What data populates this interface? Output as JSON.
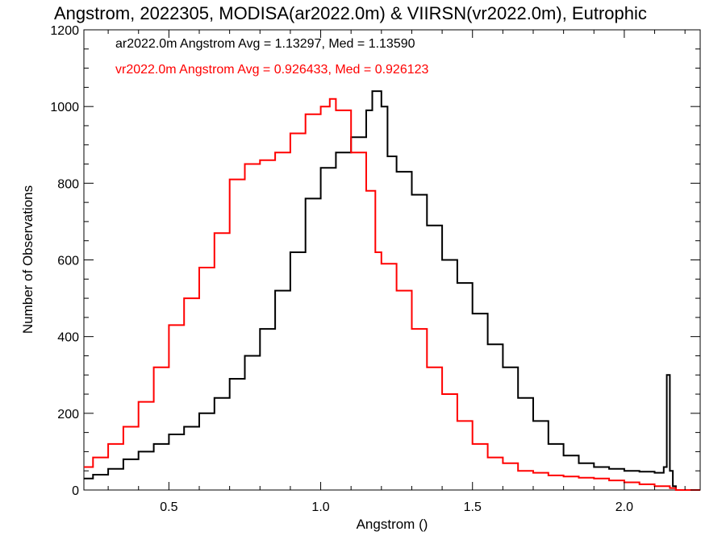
{
  "chart_data": {
    "type": "line",
    "title": "Angstrom, 2022305, MODISA(ar2022.0m) & VIIRSN(vr2022.0m), Eutrophic",
    "xlabel": "Angstrom ()",
    "ylabel": "Number of Observations",
    "xlim": [
      0.22,
      2.25
    ],
    "ylim": [
      0,
      1200
    ],
    "x_ticks": [
      0.5,
      1.0,
      1.5,
      2.0
    ],
    "x_tick_labels": [
      "0.5",
      "1.0",
      "1.5",
      "2.0"
    ],
    "y_ticks": [
      0,
      200,
      400,
      600,
      800,
      1000,
      1200
    ],
    "y_tick_labels": [
      "0",
      "200",
      "400",
      "600",
      "800",
      "1000",
      "1200"
    ],
    "grid": false,
    "legend_position": "top-left",
    "series": [
      {
        "name": "ar2022.0m",
        "legend_text": "ar2022.0m Angstrom Avg = 1.13297, Med = 1.13590",
        "color": "#000000",
        "step": true,
        "points": [
          [
            0.22,
            30
          ],
          [
            0.25,
            40
          ],
          [
            0.3,
            55
          ],
          [
            0.35,
            80
          ],
          [
            0.4,
            100
          ],
          [
            0.45,
            120
          ],
          [
            0.5,
            145
          ],
          [
            0.55,
            165
          ],
          [
            0.6,
            200
          ],
          [
            0.65,
            240
          ],
          [
            0.7,
            290
          ],
          [
            0.75,
            350
          ],
          [
            0.8,
            420
          ],
          [
            0.85,
            520
          ],
          [
            0.9,
            620
          ],
          [
            0.95,
            760
          ],
          [
            1.0,
            840
          ],
          [
            1.05,
            880
          ],
          [
            1.1,
            920
          ],
          [
            1.15,
            990
          ],
          [
            1.17,
            1040
          ],
          [
            1.2,
            1000
          ],
          [
            1.22,
            870
          ],
          [
            1.25,
            830
          ],
          [
            1.3,
            770
          ],
          [
            1.35,
            690
          ],
          [
            1.4,
            600
          ],
          [
            1.45,
            540
          ],
          [
            1.5,
            460
          ],
          [
            1.55,
            380
          ],
          [
            1.6,
            320
          ],
          [
            1.65,
            240
          ],
          [
            1.7,
            180
          ],
          [
            1.75,
            120
          ],
          [
            1.8,
            90
          ],
          [
            1.85,
            70
          ],
          [
            1.9,
            60
          ],
          [
            1.95,
            55
          ],
          [
            2.0,
            50
          ],
          [
            2.05,
            48
          ],
          [
            2.1,
            45
          ],
          [
            2.13,
            60
          ],
          [
            2.14,
            300
          ],
          [
            2.15,
            50
          ],
          [
            2.16,
            10
          ],
          [
            2.17,
            0
          ],
          [
            2.25,
            0
          ]
        ]
      },
      {
        "name": "vr2022.0m",
        "legend_text": "vr2022.0m Angstrom Avg = 0.926433, Med = 0.926123",
        "color": "#ff0000",
        "step": true,
        "points": [
          [
            0.22,
            60
          ],
          [
            0.25,
            85
          ],
          [
            0.3,
            120
          ],
          [
            0.35,
            165
          ],
          [
            0.4,
            230
          ],
          [
            0.45,
            320
          ],
          [
            0.5,
            430
          ],
          [
            0.55,
            500
          ],
          [
            0.6,
            580
          ],
          [
            0.65,
            670
          ],
          [
            0.7,
            810
          ],
          [
            0.75,
            850
          ],
          [
            0.8,
            860
          ],
          [
            0.85,
            880
          ],
          [
            0.9,
            930
          ],
          [
            0.95,
            980
          ],
          [
            1.0,
            1000
          ],
          [
            1.03,
            1020
          ],
          [
            1.05,
            990
          ],
          [
            1.1,
            880
          ],
          [
            1.15,
            780
          ],
          [
            1.18,
            620
          ],
          [
            1.2,
            590
          ],
          [
            1.25,
            520
          ],
          [
            1.3,
            420
          ],
          [
            1.35,
            320
          ],
          [
            1.4,
            250
          ],
          [
            1.45,
            180
          ],
          [
            1.5,
            120
          ],
          [
            1.55,
            85
          ],
          [
            1.6,
            70
          ],
          [
            1.65,
            50
          ],
          [
            1.7,
            45
          ],
          [
            1.75,
            38
          ],
          [
            1.8,
            35
          ],
          [
            1.85,
            32
          ],
          [
            1.9,
            30
          ],
          [
            1.95,
            25
          ],
          [
            2.0,
            20
          ],
          [
            2.05,
            15
          ],
          [
            2.1,
            10
          ],
          [
            2.15,
            5
          ],
          [
            2.17,
            0
          ],
          [
            2.25,
            0
          ]
        ]
      }
    ]
  }
}
